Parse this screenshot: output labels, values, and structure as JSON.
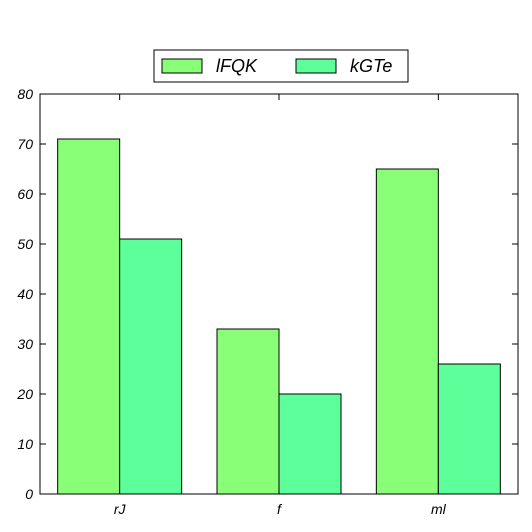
{
  "chart_data": {
    "type": "bar",
    "title": "",
    "xlabel": "",
    "ylabel": "",
    "categories": [
      "rJ",
      "f",
      "ml"
    ],
    "ylim": [
      0,
      80
    ],
    "yticks": [
      0,
      10,
      20,
      30,
      40,
      50,
      60,
      70,
      80
    ],
    "grid": false,
    "legend_position": "top-center",
    "series": [
      {
        "name": "lFQK",
        "values": [
          71,
          33,
          65
        ],
        "color": "#88ff77"
      },
      {
        "name": "kGTe",
        "values": [
          51,
          20,
          26
        ],
        "color": "#5cff9a"
      }
    ]
  }
}
